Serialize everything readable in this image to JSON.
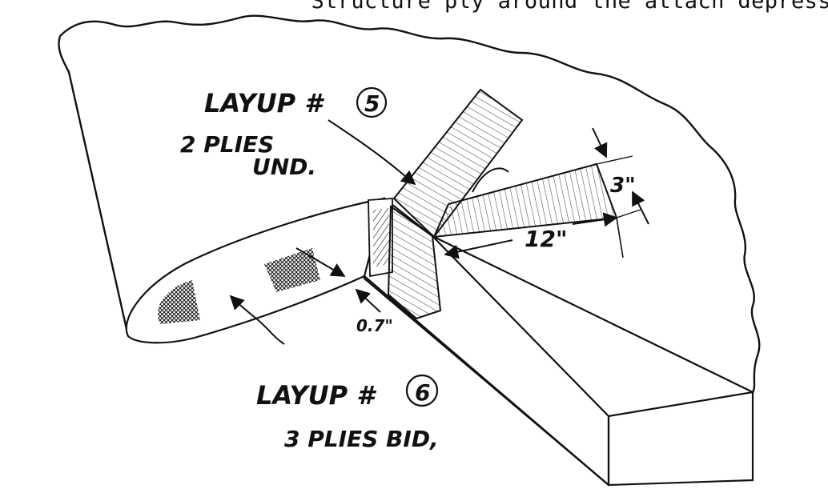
{
  "header_text": "Structure ply around the attach depress",
  "labels": {
    "layup5_title": "LAYUP #",
    "layup5_number": "5",
    "layup5_line1": "2 PLIES",
    "layup5_line2": "UND.",
    "layup6_title": "LAYUP #",
    "layup6_number": "6",
    "layup6_line1": "3 PLIES BID,",
    "dim_3in": "3\"",
    "dim_12in": "12\"",
    "dim_07in": "0.7\""
  },
  "colors": {
    "ink": "#111111",
    "paper": "#ffffff"
  }
}
